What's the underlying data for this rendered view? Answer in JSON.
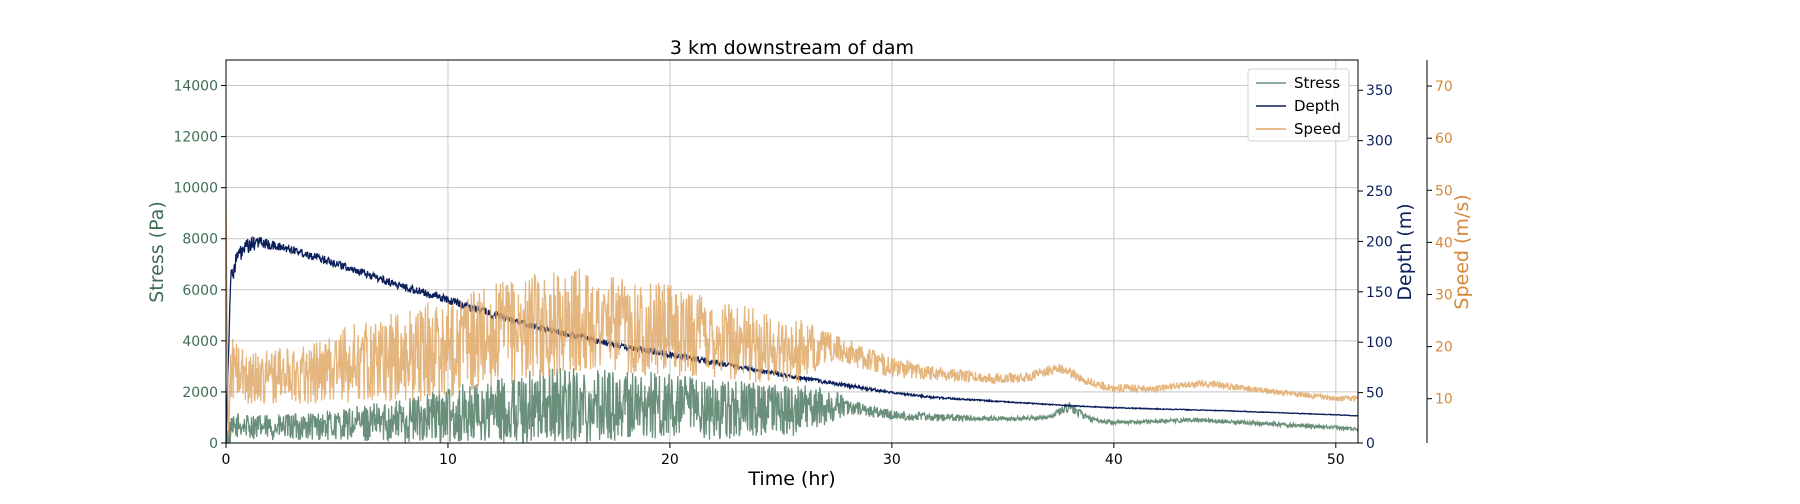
{
  "chart_data": {
    "type": "line",
    "title": "3 km downstream of dam",
    "xlabel": "Time (hr)",
    "xlim": [
      0,
      51
    ],
    "xticks": [
      0,
      10,
      20,
      30,
      40,
      50
    ],
    "grid": true,
    "legend_position": "top-right",
    "axes": {
      "stress": {
        "label": "Stress (Pa)",
        "color": "#3f6e52",
        "ylim": [
          0,
          15000
        ],
        "ticks": [
          0,
          2000,
          4000,
          6000,
          8000,
          10000,
          12000,
          14000
        ]
      },
      "depth": {
        "label": "Depth (m)",
        "color": "#0b1f5c",
        "ylim": [
          0,
          380
        ],
        "ticks": [
          0,
          50,
          100,
          150,
          200,
          250,
          300,
          350
        ]
      },
      "speed": {
        "label": "Speed (m/s)",
        "color": "#d4893a",
        "ylim": [
          1.5,
          75
        ],
        "ticks": [
          10,
          20,
          30,
          40,
          50,
          60,
          70
        ]
      }
    },
    "series": [
      {
        "name": "Stress",
        "axis": "stress",
        "color": "#6a8f7a",
        "x": [
          0,
          0.5,
          2,
          5,
          8,
          10,
          12,
          14,
          16,
          18,
          20,
          22,
          24,
          26,
          27.5,
          28,
          30,
          32,
          35,
          37,
          38,
          39,
          40,
          44,
          48,
          51
        ],
        "y": [
          200,
          700,
          600,
          700,
          900,
          1100,
          1200,
          1400,
          1500,
          1500,
          1400,
          1300,
          1300,
          1300,
          1500,
          1400,
          1100,
          1000,
          950,
          1000,
          1400,
          900,
          800,
          900,
          700,
          550
        ],
        "noise": [
          600,
          500,
          500,
          600,
          900,
          1100,
          1300,
          1500,
          1500,
          1400,
          1300,
          1200,
          1100,
          1000,
          600,
          300,
          200,
          150,
          80,
          80,
          200,
          100,
          80,
          80,
          80,
          60
        ]
      },
      {
        "name": "Depth",
        "axis": "depth",
        "color": "#0b1f5c",
        "x": [
          0,
          0.2,
          0.5,
          1,
          1.5,
          2,
          3,
          4,
          5,
          6,
          8,
          10,
          12,
          14,
          16,
          18,
          20,
          22,
          24,
          26,
          28,
          30,
          32,
          35,
          38,
          40,
          45,
          50,
          51
        ],
        "y": [
          0,
          160,
          185,
          195,
          200,
          196,
          192,
          185,
          178,
          170,
          155,
          142,
          128,
          115,
          105,
          95,
          88,
          80,
          72,
          64,
          57,
          50,
          45,
          41,
          37,
          35,
          32,
          28,
          27
        ],
        "noise": [
          0,
          10,
          8,
          8,
          6,
          5,
          4,
          4,
          4,
          4,
          4,
          4,
          4,
          3,
          3,
          3,
          3,
          3,
          2,
          2,
          2,
          1,
          1,
          0.5,
          0.5,
          0.5,
          0.3,
          0.3,
          0.3
        ]
      },
      {
        "name": "Speed",
        "axis": "speed",
        "color": "#e0a867",
        "x": [
          0,
          0.1,
          0.2,
          1,
          4,
          6,
          8,
          10,
          12,
          14,
          16,
          18,
          20,
          22,
          24,
          26,
          27,
          28,
          30,
          32,
          34,
          36,
          37.5,
          38,
          39,
          40,
          42,
          44,
          46,
          48,
          50,
          51
        ],
        "y": [
          48,
          2,
          16,
          14,
          15,
          17,
          18,
          20,
          22,
          24,
          25,
          24,
          23,
          22,
          20,
          19,
          20,
          19,
          16,
          15,
          14,
          14,
          16,
          15,
          13,
          12,
          12,
          13,
          12,
          11,
          10,
          10
        ],
        "noise": [
          0,
          0,
          6,
          5,
          6,
          8,
          9,
          10,
          10,
          10,
          10,
          9,
          9,
          8,
          7,
          6,
          3,
          2.5,
          2,
          1.5,
          1,
          1,
          1,
          1,
          0.8,
          0.8,
          0.6,
          0.6,
          0.6,
          0.5,
          0.5,
          0.5
        ]
      }
    ]
  }
}
